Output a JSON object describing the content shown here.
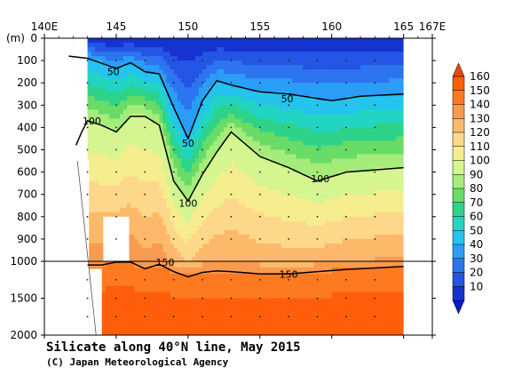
{
  "chart_data": {
    "type": "heatmap",
    "title": "Silicate along 40°N line, May 2015",
    "credit": "(C) Japan Meteorological Agency",
    "x_axis": {
      "ticks": [
        "140E",
        "145",
        "150",
        "155",
        "160",
        "165",
        "167E"
      ],
      "tick_values": [
        140,
        145,
        150,
        155,
        160,
        165,
        167
      ],
      "range": [
        140,
        167
      ]
    },
    "y_axis": {
      "unit_label": "(m)",
      "upper_ticks": [
        "0",
        "100",
        "200",
        "300",
        "400",
        "500",
        "600",
        "700",
        "800",
        "900",
        "1000"
      ],
      "upper_values": [
        0,
        100,
        200,
        300,
        400,
        500,
        600,
        700,
        800,
        900,
        1000
      ],
      "lower_ticks": [
        "1500",
        "2000"
      ],
      "lower_values": [
        1500,
        2000
      ],
      "break_depth": 1000
    },
    "colorbar": {
      "levels": [
        "160",
        "150",
        "140",
        "130",
        "120",
        "110",
        "100",
        "90",
        "80",
        "70",
        "60",
        "50",
        "40",
        "30",
        "20",
        "10"
      ],
      "colors": [
        "#fe5e0a",
        "#fe7a20",
        "#f89a50",
        "#fcb96a",
        "#fdd88a",
        "#f5ed8e",
        "#d4f590",
        "#a5ec7a",
        "#68dc66",
        "#2ed38a",
        "#22d5c2",
        "#24c4ef",
        "#2a9ef6",
        "#2d74f0",
        "#2454e4",
        "#1632d0"
      ]
    },
    "contour_labels": [
      {
        "text": "50",
        "lon": 144.8,
        "depth": 150
      },
      {
        "text": "50",
        "lon": 150.0,
        "depth": 470
      },
      {
        "text": "50",
        "lon": 156.9,
        "depth": 270
      },
      {
        "text": "100",
        "lon": 143.3,
        "depth": 370
      },
      {
        "text": "100",
        "lon": 150.0,
        "depth": 740
      },
      {
        "text": "100",
        "lon": 159.2,
        "depth": 630
      },
      {
        "text": "150",
        "lon": 148.4,
        "depth": 1010
      },
      {
        "text": "150",
        "lon": 157.0,
        "depth": 1175
      }
    ],
    "isolines": [
      {
        "level": 50,
        "bold": true,
        "points": [
          [
            141.7,
            80
          ],
          [
            143,
            90
          ],
          [
            145,
            135
          ],
          [
            146,
            110
          ],
          [
            147,
            150
          ],
          [
            148,
            160
          ],
          [
            149,
            310
          ],
          [
            150,
            450
          ],
          [
            151,
            280
          ],
          [
            152,
            190
          ],
          [
            153,
            210
          ],
          [
            155,
            240
          ],
          [
            157,
            250
          ],
          [
            160,
            280
          ],
          [
            162,
            260
          ],
          [
            165,
            250
          ]
        ]
      },
      {
        "level": 100,
        "bold": true,
        "points": [
          [
            142.2,
            480
          ],
          [
            142.6,
            420
          ],
          [
            143,
            370
          ],
          [
            144,
            390
          ],
          [
            145,
            420
          ],
          [
            146,
            350
          ],
          [
            147,
            350
          ],
          [
            148,
            390
          ],
          [
            149,
            640
          ],
          [
            150,
            730
          ],
          [
            151,
            610
          ],
          [
            152,
            510
          ],
          [
            153,
            420
          ],
          [
            155,
            530
          ],
          [
            157,
            580
          ],
          [
            159,
            640
          ],
          [
            161,
            600
          ],
          [
            163,
            590
          ],
          [
            165,
            580
          ]
        ]
      },
      {
        "level": 150,
        "bold": true,
        "points": [
          [
            143,
            1050
          ],
          [
            144,
            1050
          ],
          [
            145,
            1010
          ],
          [
            146,
            1010
          ],
          [
            147,
            1100
          ],
          [
            148,
            1040
          ],
          [
            149,
            1140
          ],
          [
            150,
            1210
          ],
          [
            151,
            1150
          ],
          [
            152,
            1130
          ],
          [
            153,
            1140
          ],
          [
            155,
            1170
          ],
          [
            157,
            1170
          ],
          [
            159,
            1140
          ],
          [
            161,
            1110
          ],
          [
            163,
            1090
          ],
          [
            165,
            1070
          ]
        ]
      }
    ],
    "colors": {
      "plot_bg": "#ffffff",
      "nodata_fill": "#ffffff",
      "frame": "#000000"
    }
  }
}
